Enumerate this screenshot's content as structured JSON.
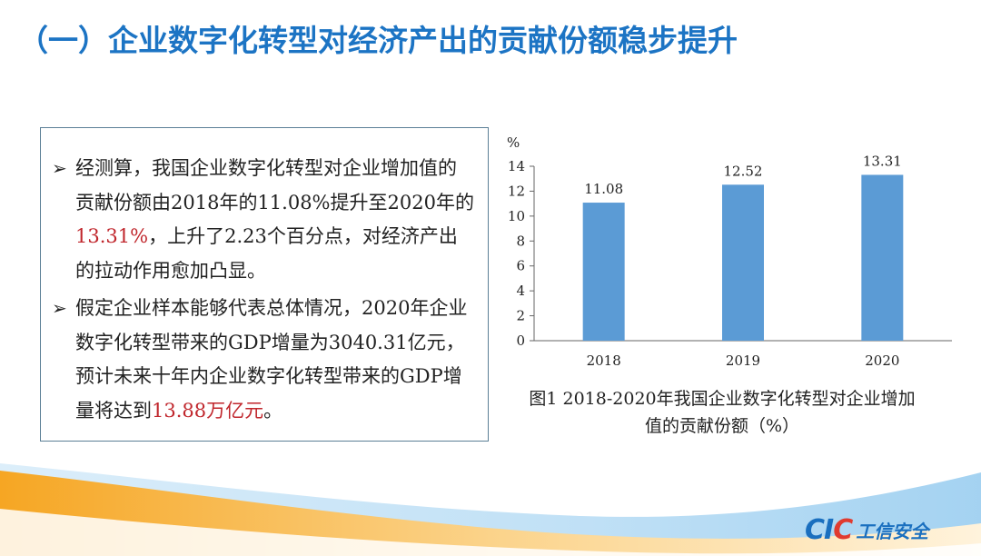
{
  "slide": {
    "title": "（一）企业数字化转型对经济产出的贡献份额稳步提升"
  },
  "textbox": {
    "bullets": [
      {
        "before": "经测算，我国企业数字化转型对企业增加值的贡献份额由2018年的11.08%提升至2020年的",
        "highlight": "13.31%",
        "after": "，上升了2.23个百分点，对经济产出的拉动作用愈加凸显。"
      },
      {
        "before": "假定企业样本能够代表总体情况，2020年企业数字化转型带来的GDP增量为3040.31亿元，预计未来十年内企业数字化转型带来的GDP增量将达到",
        "highlight": "13.88万亿元",
        "after": "。"
      }
    ],
    "bullet_symbol": "➢"
  },
  "chart_data": {
    "type": "bar",
    "categories": [
      "2018",
      "2019",
      "2020"
    ],
    "values": [
      11.08,
      12.52,
      13.31
    ],
    "value_labels": [
      "11.08",
      "12.52",
      "13.31"
    ],
    "ylabel": "%",
    "ylim": [
      0,
      14
    ],
    "yticks": [
      "0",
      "2",
      "4",
      "6",
      "8",
      "10",
      "12",
      "14"
    ],
    "bar_color": "#5b9bd5",
    "grid": false,
    "caption": "图1 2018-2020年我国企业数字化转型对企业增加值的贡献份额（%）"
  },
  "footer": {
    "logo_latin_left": "CI",
    "logo_latin_mid": "C",
    "logo_cn": "工信安全",
    "colors": {
      "blue": "#1a6fbf",
      "red": "#e03a2f",
      "orange": "#f5a623"
    }
  }
}
